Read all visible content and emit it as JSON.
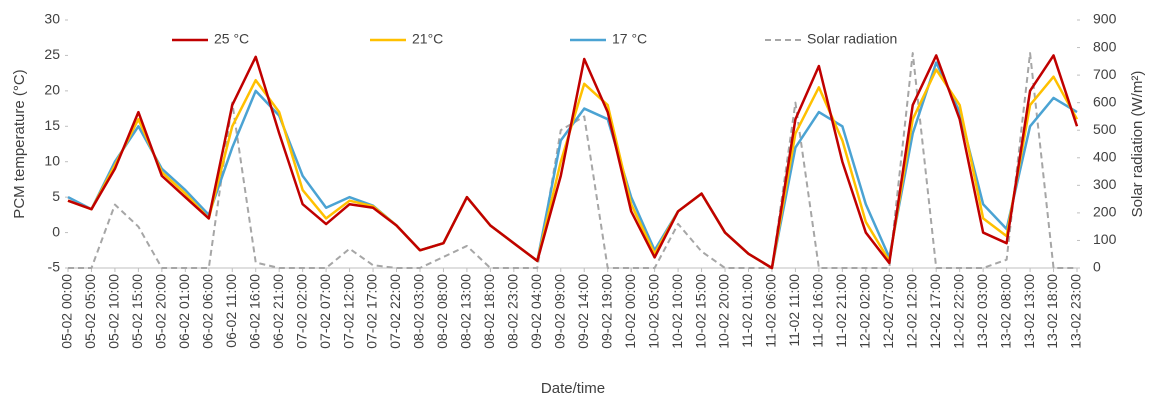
{
  "chart_data": {
    "type": "line",
    "x_label": "Date/time",
    "y_label": "PCM temperature (°C)",
    "y2_label": "Solar radiation (W/m²)",
    "categories": [
      "05-02 00:00",
      "05-02 05:00",
      "05-02 10:00",
      "05-02 15:00",
      "05-02 20:00",
      "06-02 01:00",
      "06-02 06:00",
      "06-02 11:00",
      "06-02 16:00",
      "06-02 21:00",
      "07-02 02:00",
      "07-02 07:00",
      "07-02 12:00",
      "07-02 17:00",
      "07-02 22:00",
      "08-02 03:00",
      "08-02 08:00",
      "08-02 13:00",
      "08-02 18:00",
      "08-02 23:00",
      "09-02 04:00",
      "09-02 09:00",
      "09-02 14:00",
      "09-02 19:00",
      "10-02 00:00",
      "10-02 05:00",
      "10-02 10:00",
      "10-02 15:00",
      "10-02 20:00",
      "11-02 01:00",
      "11-02 06:00",
      "11-02 11:00",
      "11-02 16:00",
      "11-02 21:00",
      "12-02 02:00",
      "12-02 07:00",
      "12-02 12:00",
      "12-02 17:00",
      "12-02 22:00",
      "13-02 03:00",
      "13-02 08:00",
      "13-02 13:00",
      "13-02 18:00",
      "13-02 23:00"
    ],
    "series": [
      {
        "name": "25 °C",
        "color": "#c00000",
        "values": [
          4.5,
          3.3,
          9,
          17,
          8,
          5,
          2,
          18,
          24.8,
          14,
          4,
          1.2,
          4,
          3.5,
          1,
          -2.5,
          -1.5,
          5,
          1,
          -1.5,
          -4,
          8,
          24.5,
          17,
          3,
          -3.5,
          3,
          5.5,
          0,
          -3,
          -5,
          16,
          23.5,
          10,
          0,
          -4.3,
          18,
          25,
          16,
          0,
          -1.5,
          20,
          25,
          15
        ]
      },
      {
        "name": "21°C",
        "color": "#ffc000",
        "values": [
          4.5,
          3.3,
          9.5,
          16,
          8.5,
          5.5,
          2,
          15,
          21.5,
          17,
          6,
          2,
          4.5,
          3.7,
          1,
          -2.5,
          -1.5,
          5,
          1,
          -1.5,
          -4,
          10,
          21,
          18,
          4,
          -3,
          3,
          5.5,
          0,
          -3,
          -5,
          14,
          20.5,
          13,
          1.5,
          -4,
          16,
          23,
          18,
          2,
          -0.5,
          18,
          22,
          16
        ]
      },
      {
        "name": "17 °C",
        "color": "#4ba3d3",
        "values": [
          5,
          3.3,
          10,
          15,
          9,
          6,
          2.5,
          12,
          20,
          16.5,
          8,
          3.5,
          5,
          3.8,
          1,
          -2.5,
          -1.5,
          5,
          1,
          -1.5,
          -4,
          13,
          17.5,
          16,
          5,
          -2.5,
          3,
          5.5,
          0,
          -3,
          -5,
          12,
          17,
          15,
          4,
          -3.5,
          14,
          24,
          17,
          4,
          0.5,
          15,
          19,
          17
        ]
      },
      {
        "name": "Solar radiation",
        "color": "#a6a6a6",
        "line_style": "dashed",
        "axis": "y2",
        "values": [
          0,
          0,
          230,
          150,
          0,
          0,
          0,
          600,
          20,
          0,
          0,
          0,
          70,
          10,
          0,
          0,
          40,
          80,
          0,
          0,
          0,
          500,
          550,
          0,
          0,
          0,
          160,
          60,
          0,
          0,
          0,
          600,
          0,
          0,
          0,
          0,
          780,
          0,
          0,
          0,
          30,
          780,
          0,
          0
        ]
      }
    ],
    "ylim": [
      -5,
      30
    ],
    "yticks": [
      -5,
      0,
      5,
      10,
      15,
      20,
      25,
      30
    ],
    "y2lim": [
      0,
      900
    ],
    "y2ticks": [
      0,
      100,
      200,
      300,
      400,
      500,
      600,
      700,
      800,
      900
    ],
    "legend": "top",
    "grid": false
  }
}
